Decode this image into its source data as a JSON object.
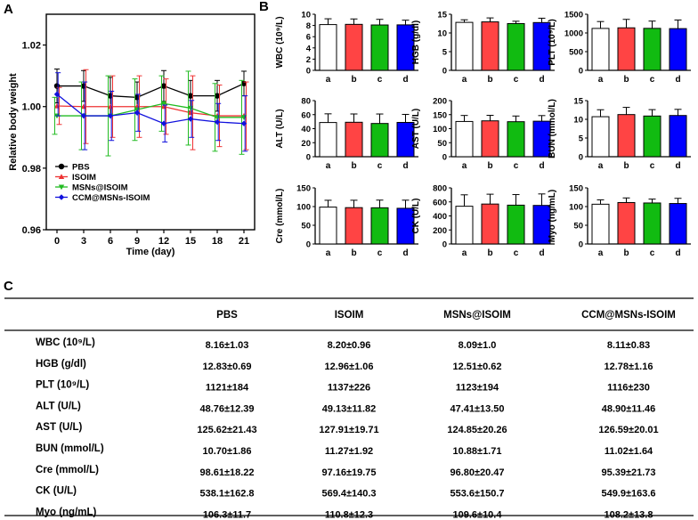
{
  "panel_labels": [
    "A",
    "B",
    "C"
  ],
  "chart_data": [
    {
      "id": "weight",
      "type": "line",
      "title": "",
      "xlabel": "Time (day)",
      "ylabel": "Relative body weight",
      "x": [
        0,
        3,
        6,
        9,
        12,
        15,
        18,
        21
      ],
      "xlim": [
        -1.2,
        22.2
      ],
      "ylim": [
        0.96,
        1.03
      ],
      "yticks": [
        0.96,
        0.98,
        1.0,
        1.02
      ],
      "ytick_labels": [
        "0.96",
        "0.98",
        "1.00",
        "1.02"
      ],
      "xticks": [
        0,
        3,
        6,
        9,
        12,
        15,
        18,
        21
      ],
      "legend_position": "lower-left",
      "series": [
        {
          "name": "PBS",
          "color": "#000000",
          "marker": "circle",
          "values": [
            1.0067,
            1.0067,
            1.0035,
            1.003,
            1.0067,
            1.0035,
            1.0035,
            1.0075
          ],
          "errors": [
            0.0055,
            0.005,
            0.006,
            0.005,
            0.005,
            0.005,
            0.005,
            0.004
          ]
        },
        {
          "name": "ISOIM",
          "color": "#ee3333",
          "marker": "triangle",
          "values": [
            1.0002,
            1.0,
            1.0,
            1.0,
            1.0,
            0.998,
            0.997,
            0.997
          ],
          "errors": [
            0.006,
            0.012,
            0.01,
            0.01,
            0.009,
            0.012,
            0.01,
            0.011
          ]
        },
        {
          "name": "MSNs@ISOIM",
          "color": "#22bb22",
          "marker": "triangle-down",
          "values": [
            0.997,
            0.997,
            0.997,
            0.999,
            1.001,
            0.9995,
            0.9965,
            0.9965
          ],
          "errors": [
            0.006,
            0.011,
            0.013,
            0.01,
            0.009,
            0.012,
            0.011,
            0.012
          ]
        },
        {
          "name": "CCM@MSNs-ISOIM",
          "color": "#1111dd",
          "marker": "diamond",
          "values": [
            1.004,
            0.997,
            0.997,
            0.998,
            0.9945,
            0.996,
            0.995,
            0.9945
          ],
          "errors": [
            0.007,
            0.011,
            0.008,
            0.006,
            0.006,
            0.006,
            0.006,
            0.009
          ]
        }
      ]
    },
    {
      "id": "WBC",
      "type": "bar",
      "ylabel": "WBC (10⁹/L)",
      "categories": [
        "a",
        "b",
        "c",
        "d"
      ],
      "ylim": [
        0,
        10
      ],
      "yticks": [
        0,
        2,
        4,
        6,
        8,
        10
      ],
      "ytick_labels": [
        "0",
        "2",
        "4",
        "6",
        "8",
        "10"
      ],
      "values": [
        8.16,
        8.2,
        8.09,
        8.11
      ],
      "errors": [
        1.03,
        0.96,
        1.0,
        0.83
      ]
    },
    {
      "id": "HGB",
      "type": "bar",
      "ylabel": "HGB (g/dl)",
      "categories": [
        "a",
        "b",
        "c",
        "d"
      ],
      "ylim": [
        0,
        15
      ],
      "yticks": [
        0,
        5,
        10,
        15
      ],
      "ytick_labels": [
        "0",
        "5",
        "10",
        "15"
      ],
      "values": [
        12.83,
        12.96,
        12.51,
        12.78
      ],
      "errors": [
        0.69,
        1.06,
        0.62,
        1.16
      ]
    },
    {
      "id": "PLT",
      "type": "bar",
      "ylabel": "PLT (10⁹/L)",
      "categories": [
        "a",
        "b",
        "c",
        "d"
      ],
      "ylim": [
        0,
        1500
      ],
      "yticks": [
        0,
        500,
        1000,
        1500
      ],
      "ytick_labels": [
        "0",
        "500",
        "1000",
        "1500"
      ],
      "values": [
        1121,
        1137,
        1123,
        1116
      ],
      "errors": [
        184,
        226,
        194,
        230
      ]
    },
    {
      "id": "ALT",
      "type": "bar",
      "ylabel": "ALT (U/L)",
      "categories": [
        "a",
        "b",
        "c",
        "d"
      ],
      "ylim": [
        0,
        80
      ],
      "yticks": [
        0,
        20,
        40,
        60,
        80
      ],
      "ytick_labels": [
        "0",
        "20",
        "40",
        "60",
        "80"
      ],
      "values": [
        48.76,
        49.13,
        47.41,
        48.9
      ],
      "errors": [
        12.39,
        11.82,
        13.5,
        11.46
      ]
    },
    {
      "id": "AST",
      "type": "bar",
      "ylabel": "AST (U/L)",
      "categories": [
        "a",
        "b",
        "c",
        "d"
      ],
      "ylim": [
        0,
        200
      ],
      "yticks": [
        0,
        50,
        100,
        150,
        200
      ],
      "ytick_labels": [
        "0",
        "50",
        "100",
        "150",
        "200"
      ],
      "values": [
        125.62,
        127.91,
        124.85,
        126.59
      ],
      "errors": [
        21.43,
        19.71,
        20.26,
        20.01
      ]
    },
    {
      "id": "BUN",
      "type": "bar",
      "ylabel": "BUN (mmol/L)",
      "categories": [
        "a",
        "b",
        "c",
        "d"
      ],
      "ylim": [
        0,
        15
      ],
      "yticks": [
        0,
        5,
        10,
        15
      ],
      "ytick_labels": [
        "0",
        "5",
        "10",
        "15"
      ],
      "values": [
        10.7,
        11.27,
        10.88,
        11.02
      ],
      "errors": [
        1.86,
        1.92,
        1.71,
        1.64
      ]
    },
    {
      "id": "Cre",
      "type": "bar",
      "ylabel": "Cre (mmol/L)",
      "categories": [
        "a",
        "b",
        "c",
        "d"
      ],
      "ylim": [
        0,
        150
      ],
      "yticks": [
        0,
        50,
        100,
        150
      ],
      "ytick_labels": [
        "0",
        "50",
        "100",
        "150"
      ],
      "values": [
        98.61,
        97.16,
        96.8,
        95.39
      ],
      "errors": [
        18.22,
        19.75,
        20.47,
        21.73
      ]
    },
    {
      "id": "CK",
      "type": "bar",
      "ylabel": "CK (U/L)",
      "categories": [
        "a",
        "b",
        "c",
        "d"
      ],
      "ylim": [
        0,
        800
      ],
      "yticks": [
        0,
        200,
        400,
        600,
        800
      ],
      "ytick_labels": [
        "0",
        "200",
        "400",
        "600",
        "800"
      ],
      "values": [
        538.1,
        569.4,
        553.6,
        549.9
      ],
      "errors": [
        162.8,
        140.3,
        150.7,
        163.6
      ]
    },
    {
      "id": "Myo",
      "type": "bar",
      "ylabel": "Myo (ng/mL)",
      "categories": [
        "a",
        "b",
        "c",
        "d"
      ],
      "ylim": [
        0,
        150
      ],
      "yticks": [
        0,
        50,
        100,
        150
      ],
      "ytick_labels": [
        "0",
        "50",
        "100",
        "150"
      ],
      "values": [
        106.3,
        110.8,
        109.6,
        108.2
      ],
      "errors": [
        11.7,
        12.3,
        10.4,
        13.8
      ]
    }
  ],
  "bar_colors": [
    "#ffffff",
    "#ff4444",
    "#11bb11",
    "#0000ff"
  ],
  "table": {
    "headers": [
      "PBS",
      "ISOIM",
      "MSNs@ISOIM",
      "CCM@MSNs-ISOIM"
    ],
    "rows": [
      {
        "label": "WBC (10⁹/L)",
        "cells": [
          "8.16±1.03",
          "8.20±0.96",
          "8.09±1.0",
          "8.11±0.83"
        ]
      },
      {
        "label": "HGB (g/dl)",
        "cells": [
          "12.83±0.69",
          "12.96±1.06",
          "12.51±0.62",
          "12.78±1.16"
        ]
      },
      {
        "label": "PLT (10⁹/L)",
        "cells": [
          "1121±184",
          "1137±226",
          "1123±194",
          "1116±230"
        ]
      },
      {
        "label": "ALT (U/L)",
        "cells": [
          "48.76±12.39",
          "49.13±11.82",
          "47.41±13.50",
          "48.90±11.46"
        ]
      },
      {
        "label": "AST (U/L)",
        "cells": [
          "125.62±21.43",
          "127.91±19.71",
          "124.85±20.26",
          "126.59±20.01"
        ]
      },
      {
        "label": "BUN (mmol/L)",
        "cells": [
          "10.70±1.86",
          "11.27±1.92",
          "10.88±1.71",
          "11.02±1.64"
        ]
      },
      {
        "label": "Cre (mmol/L)",
        "cells": [
          "98.61±18.22",
          "97.16±19.75",
          "96.80±20.47",
          "95.39±21.73"
        ]
      },
      {
        "label": "CK (U/L)",
        "cells": [
          "538.1±162.8",
          "569.4±140.3",
          "553.6±150.7",
          "549.9±163.6"
        ]
      },
      {
        "label": "Myo (ng/mL)",
        "cells": [
          "106.3±11.7",
          "110.8±12.3",
          "109.6±10.4",
          "108.2±13.8"
        ]
      }
    ]
  }
}
